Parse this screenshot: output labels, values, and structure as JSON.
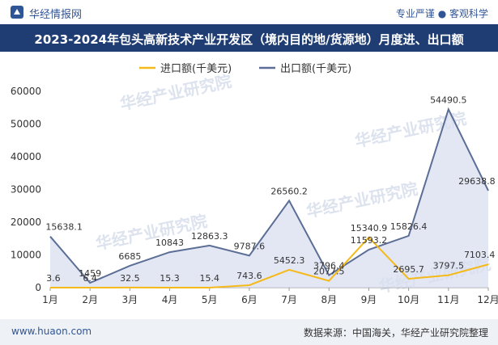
{
  "header": {
    "brand": "华经情报网",
    "tagline": "专业严谨 ● 客观科学"
  },
  "title": "2023-2024年包头高新技术产业开发区（境内目的地/货源地）月度进、出口额",
  "watermarks": [
    "华经产业研究院",
    "www.huaon.com"
  ],
  "footer": {
    "site": "www.huaon.com",
    "source": "数据来源：中国海关，华经产业研究院整理"
  },
  "colors": {
    "import": "#f5b919",
    "export": "#5b6e95",
    "export_fill": "#d9dff0",
    "title_bg": "#1f3d73"
  },
  "chart_data": {
    "type": "area",
    "title": "2023-2024年包头高新技术产业开发区（境内目的地/货源地）月度进、出口额",
    "categories": [
      "1月",
      "2月",
      "3月",
      "4月",
      "5月",
      "6月",
      "7月",
      "8月",
      "9月",
      "10月",
      "11月",
      "12月"
    ],
    "ylim": [
      0,
      60000
    ],
    "yticks": [
      0,
      10000,
      20000,
      30000,
      40000,
      50000,
      60000
    ],
    "legend_position": "top-center",
    "series": [
      {
        "name": "进口额(千美元)",
        "values": [
          3.6,
          6.4,
          32.5,
          15.3,
          15.4,
          743.6,
          5452.3,
          2077.5,
          15340.9,
          2695.7,
          3797.5,
          7103.4
        ],
        "labels": [
          "3.6",
          "6.4",
          "32.5",
          "15.3",
          "15.4",
          "743.6",
          "5452.3",
          "2077.5",
          "15340.9",
          "2695.7",
          "3797.5",
          "7103.4"
        ]
      },
      {
        "name": "出口额(千美元)",
        "values": [
          15638.1,
          1459,
          6685,
          10843,
          12863.3,
          9787.6,
          26560.2,
          3796.4,
          11593.2,
          15826.4,
          54490.5,
          29638.8
        ],
        "labels": [
          "15638.1",
          "1459",
          "6685",
          "10843",
          "12863.3",
          "9787.6",
          "26560.2",
          "3796.4",
          "11593.2",
          "15826.4",
          "54490.5",
          "29638.8"
        ]
      }
    ]
  }
}
